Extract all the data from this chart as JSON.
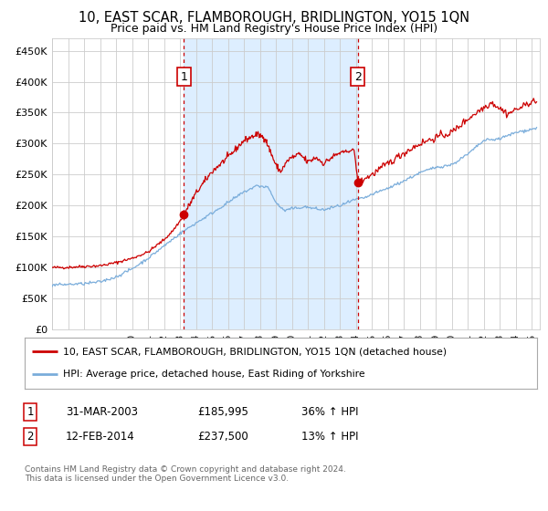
{
  "title": "10, EAST SCAR, FLAMBOROUGH, BRIDLINGTON, YO15 1QN",
  "subtitle": "Price paid vs. HM Land Registry's House Price Index (HPI)",
  "title_fontsize": 10.5,
  "subtitle_fontsize": 9,
  "background_color": "#ffffff",
  "plot_bg_color": "#ffffff",
  "shaded_region_color": "#ddeeff",
  "grid_color": "#cccccc",
  "red_line_color": "#cc0000",
  "blue_line_color": "#7aaddb",
  "dashed_line_color": "#cc0000",
  "marker_color": "#cc0000",
  "ylabel_ticks": [
    "£0",
    "£50K",
    "£100K",
    "£150K",
    "£200K",
    "£250K",
    "£300K",
    "£350K",
    "£400K",
    "£450K"
  ],
  "ylim": [
    0,
    470000
  ],
  "ytick_values": [
    0,
    50000,
    100000,
    150000,
    200000,
    250000,
    300000,
    350000,
    400000,
    450000
  ],
  "sale1_date_num": 2003.25,
  "sale1_price": 185995,
  "sale1_label": "1",
  "sale2_date_num": 2014.12,
  "sale2_price": 237500,
  "sale2_label": "2",
  "shaded_x_start": 2003.25,
  "shaded_x_end": 2014.12,
  "legend_line1": "10, EAST SCAR, FLAMBOROUGH, BRIDLINGTON, YO15 1QN (detached house)",
  "legend_line2": "HPI: Average price, detached house, East Riding of Yorkshire",
  "note1_label": "1",
  "note1_date": "31-MAR-2003",
  "note1_price": "£185,995",
  "note1_hpi": "36% ↑ HPI",
  "note2_label": "2",
  "note2_date": "12-FEB-2014",
  "note2_price": "£237,500",
  "note2_hpi": "13% ↑ HPI",
  "footer": "Contains HM Land Registry data © Crown copyright and database right 2024.\nThis data is licensed under the Open Government Licence v3.0.",
  "xmin": 1995,
  "xmax": 2025.5
}
